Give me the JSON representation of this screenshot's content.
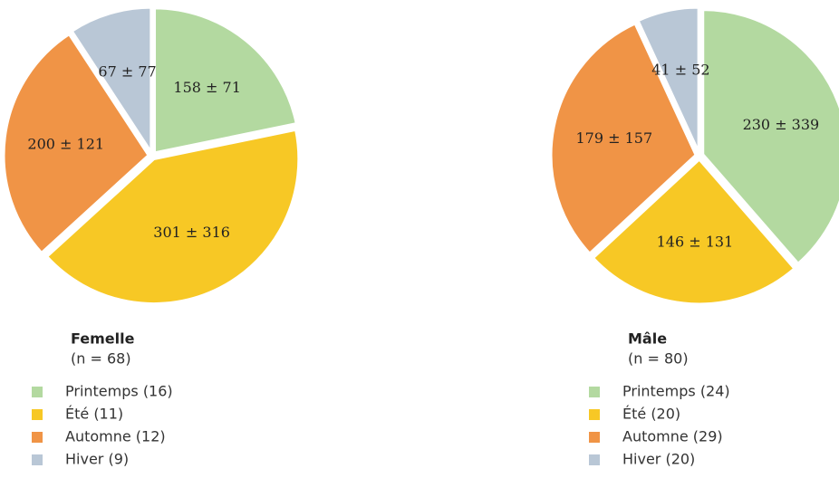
{
  "chart_data": [
    {
      "type": "pie",
      "title": "Femelle",
      "subtitle": "(n = 68)",
      "categories": [
        "Printemps (16)",
        "Été (11)",
        "Automne (12)",
        "Hiver (9)"
      ],
      "values": [
        158,
        301,
        200,
        67
      ],
      "errors": [
        71,
        316,
        121,
        77
      ],
      "value_labels": [
        "158 ± 71",
        "301 ± 316",
        "200 ± 121",
        "67 ± 77"
      ],
      "colors": [
        "#b3d9a0",
        "#f7c825",
        "#f09446",
        "#b9c7d6"
      ]
    },
    {
      "type": "pie",
      "title": "Mâle",
      "subtitle": "(n = 80)",
      "categories": [
        "Printemps (24)",
        "Été (20)",
        "Automne (29)",
        "Hiver (20)"
      ],
      "values": [
        230,
        146,
        179,
        41
      ],
      "errors": [
        339,
        131,
        157,
        52
      ],
      "value_labels": [
        "230 ± 339",
        "146 ± 131",
        "179 ± 157",
        "41 ± 52"
      ],
      "colors": [
        "#b3d9a0",
        "#f7c825",
        "#f09446",
        "#b9c7d6"
      ]
    }
  ]
}
